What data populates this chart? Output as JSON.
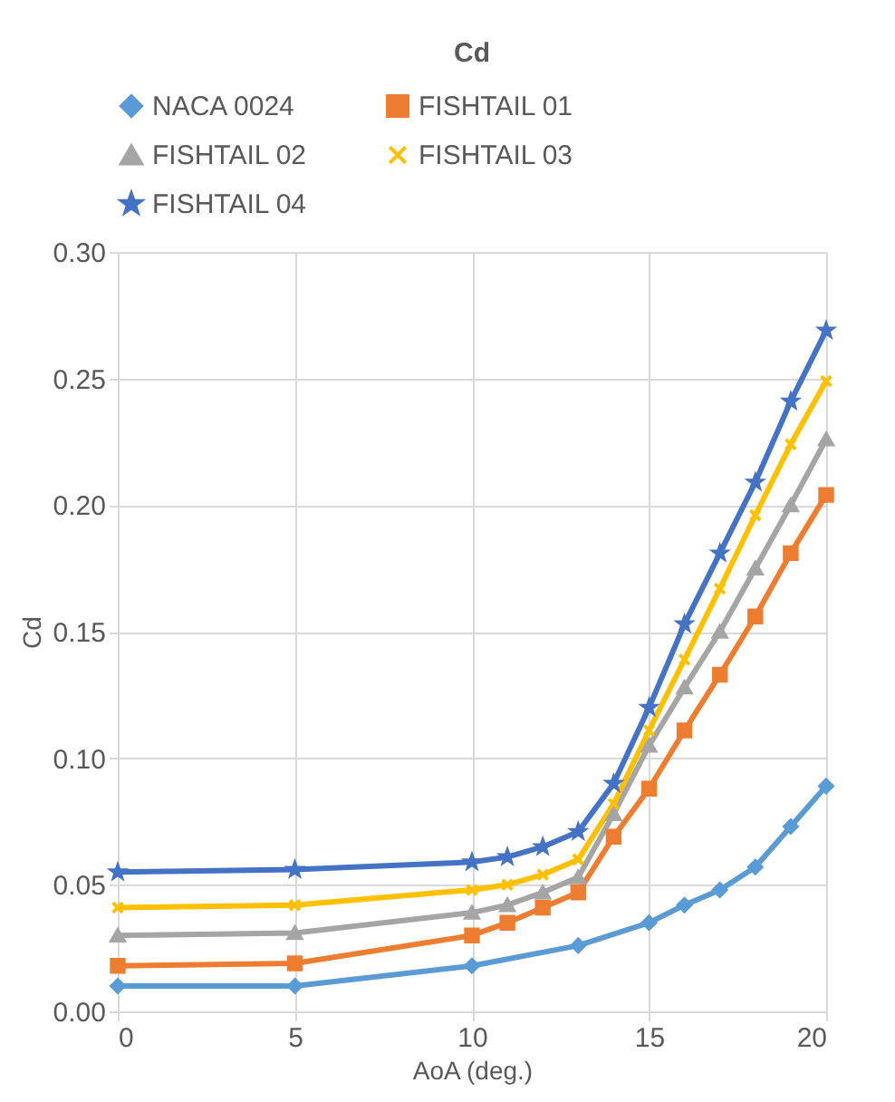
{
  "chart_data": {
    "type": "line",
    "title": "Cd",
    "xlabel": "AoA (deg.)",
    "ylabel": "Cd",
    "xlim": [
      0,
      20
    ],
    "xticks": [
      0,
      5,
      10,
      15,
      20
    ],
    "ylim": [
      0,
      0.3
    ],
    "yticks": [
      {
        "value": 0,
        "label": "0.00"
      },
      {
        "value": 0.05,
        "label": "0.05"
      },
      {
        "value": 0.1,
        "label": "0.10"
      },
      {
        "value": 0.15,
        "label": "0.15"
      },
      {
        "value": 0.2,
        "label": "0.20"
      },
      {
        "value": 0.25,
        "label": "0.25"
      },
      {
        "value": 0.3,
        "label": "0.30"
      }
    ],
    "grid": true,
    "legend": "top",
    "line_style": "solid",
    "series": [
      {
        "name": "NACA 0024",
        "color": "#5b9bd5",
        "marker": "diamond",
        "x": [
          0,
          5,
          10,
          13,
          15,
          16,
          17,
          18,
          19,
          20
        ],
        "values": [
          0.01,
          0.01,
          0.018,
          0.026,
          0.035,
          0.042,
          0.048,
          0.057,
          0.073,
          0.089
        ]
      },
      {
        "name": "FISHTAIL 01",
        "color": "#ed7d31",
        "marker": "square",
        "x": [
          0,
          5,
          10,
          11,
          12,
          13,
          14,
          15,
          16,
          17,
          18,
          19,
          20
        ],
        "values": [
          0.018,
          0.019,
          0.03,
          0.035,
          0.041,
          0.047,
          0.069,
          0.088,
          0.111,
          0.133,
          0.156,
          0.181,
          0.204
        ]
      },
      {
        "name": "FISHTAIL 02",
        "color": "#a5a5a5",
        "marker": "triangle",
        "x": [
          0,
          5,
          10,
          11,
          12,
          13,
          14,
          15,
          16,
          17,
          18,
          19,
          20
        ],
        "values": [
          0.03,
          0.031,
          0.039,
          0.042,
          0.047,
          0.053,
          0.078,
          0.105,
          0.128,
          0.15,
          0.175,
          0.2,
          0.226
        ]
      },
      {
        "name": "FISHTAIL 03",
        "color": "#ffc000",
        "marker": "cross",
        "x": [
          0,
          5,
          10,
          11,
          12,
          13,
          14,
          15,
          16,
          17,
          18,
          19,
          20
        ],
        "values": [
          0.041,
          0.042,
          0.048,
          0.05,
          0.054,
          0.06,
          0.082,
          0.111,
          0.139,
          0.167,
          0.196,
          0.224,
          0.249
        ]
      },
      {
        "name": "FISHTAIL 04",
        "color": "#4472c4",
        "marker": "star",
        "x": [
          0,
          5,
          10,
          11,
          12,
          13,
          14,
          15,
          16,
          17,
          18,
          19,
          20
        ],
        "values": [
          0.055,
          0.056,
          0.059,
          0.061,
          0.065,
          0.071,
          0.09,
          0.12,
          0.153,
          0.181,
          0.209,
          0.241,
          0.269
        ]
      }
    ]
  }
}
